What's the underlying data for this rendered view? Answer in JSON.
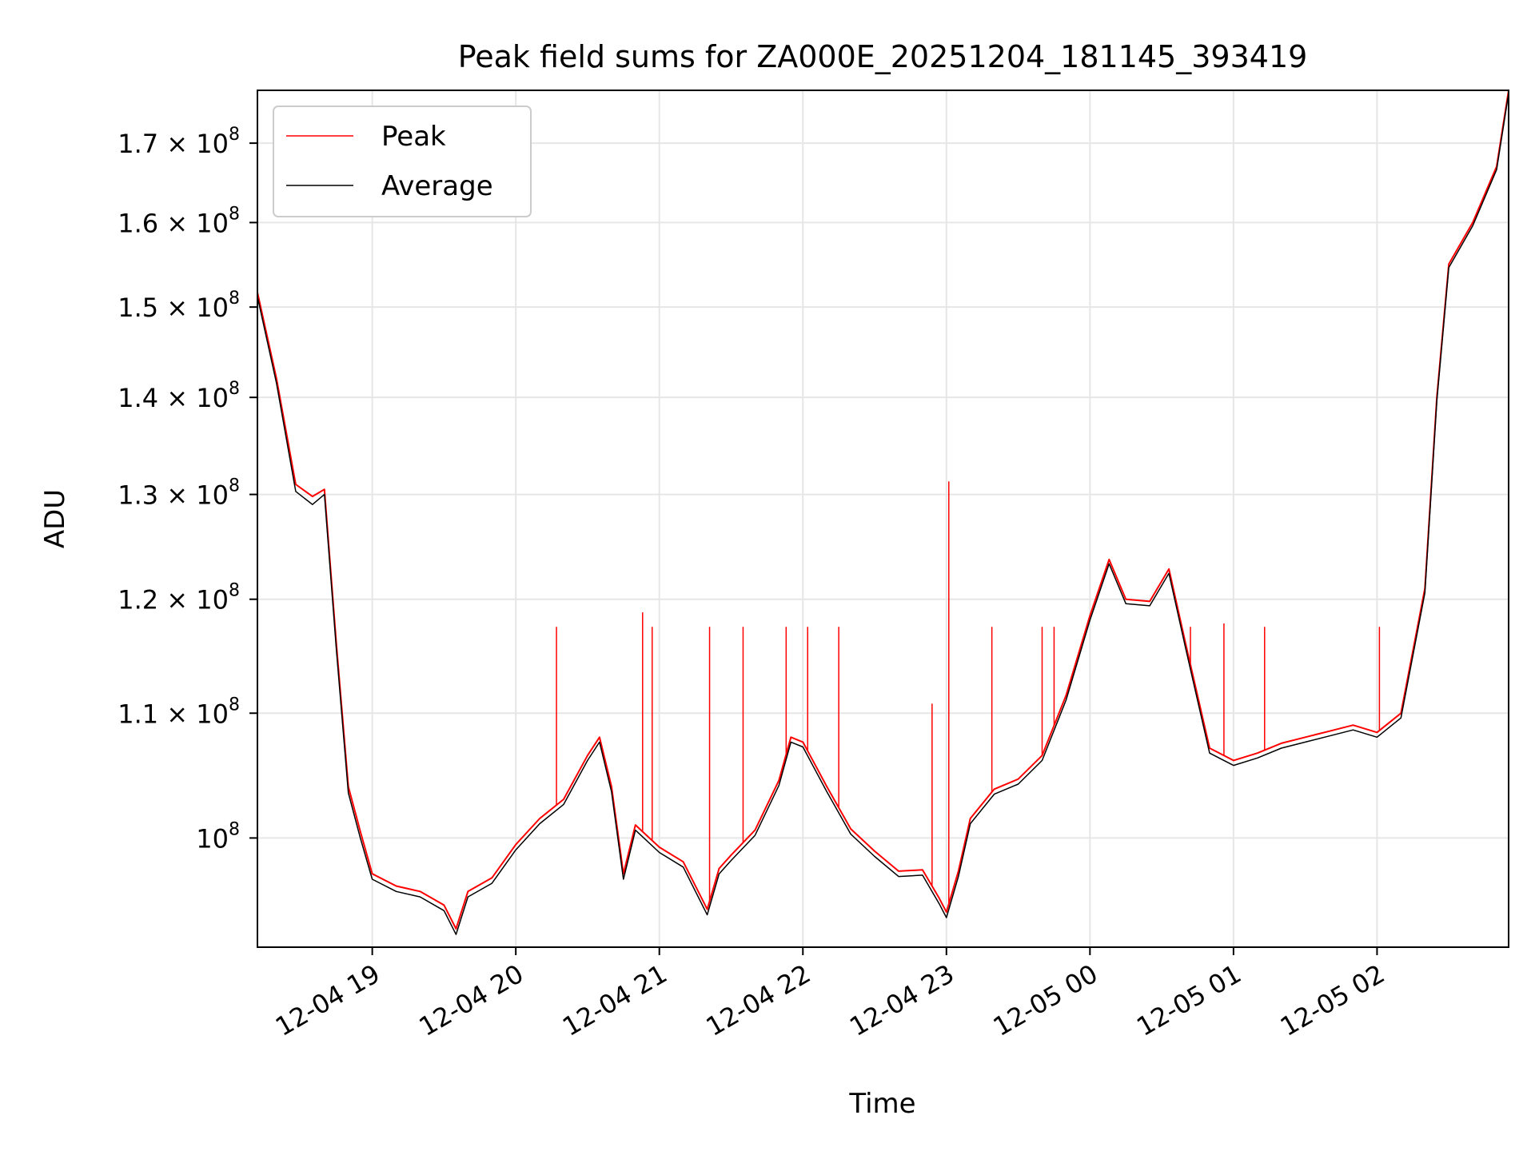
{
  "chart_data": {
    "type": "line",
    "title": "Peak field sums for ZA000E_20251204_181145_393419",
    "xlabel": "Time",
    "ylabel": "ADU",
    "y_scale": "log",
    "xlim": [
      "2025-12-04 18:12",
      "2025-12-05 02:55"
    ],
    "ylim": [
      92000000,
      177000000
    ],
    "grid": true,
    "legend_position": "top-left",
    "x_ticks": [
      {
        "value": "2025-12-04 19:00",
        "label": "12-04 19"
      },
      {
        "value": "2025-12-04 20:00",
        "label": "12-04 20"
      },
      {
        "value": "2025-12-04 21:00",
        "label": "12-04 21"
      },
      {
        "value": "2025-12-04 22:00",
        "label": "12-04 22"
      },
      {
        "value": "2025-12-04 23:00",
        "label": "12-04 23"
      },
      {
        "value": "2025-12-05 00:00",
        "label": "12-05 00"
      },
      {
        "value": "2025-12-05 01:00",
        "label": "12-05 01"
      },
      {
        "value": "2025-12-05 02:00",
        "label": "12-05 02"
      }
    ],
    "y_ticks": [
      {
        "value": 100000000,
        "mant": "",
        "exp": "8"
      },
      {
        "value": 110000000,
        "mant": "1.1",
        "exp": "8"
      },
      {
        "value": 120000000,
        "mant": "1.2",
        "exp": "8"
      },
      {
        "value": 130000000,
        "mant": "1.3",
        "exp": "8"
      },
      {
        "value": 140000000,
        "mant": "1.4",
        "exp": "8"
      },
      {
        "value": 150000000,
        "mant": "1.5",
        "exp": "8"
      },
      {
        "value": 160000000,
        "mant": "1.6",
        "exp": "8"
      },
      {
        "value": 170000000,
        "mant": "1.7",
        "exp": "8"
      }
    ],
    "series": [
      {
        "name": "Peak",
        "color": "#ff0000",
        "x": [
          "2025-12-04 18:12",
          "2025-12-04 18:20",
          "2025-12-04 18:28",
          "2025-12-04 18:35",
          "2025-12-04 18:40",
          "2025-12-04 18:45",
          "2025-12-04 18:50",
          "2025-12-04 18:55",
          "2025-12-04 19:00",
          "2025-12-04 19:10",
          "2025-12-04 19:20",
          "2025-12-04 19:30",
          "2025-12-04 19:35",
          "2025-12-04 19:40",
          "2025-12-04 19:50",
          "2025-12-04 20:00",
          "2025-12-04 20:10",
          "2025-12-04 20:20",
          "2025-12-04 20:30",
          "2025-12-04 20:35",
          "2025-12-04 20:40",
          "2025-12-04 20:45",
          "2025-12-04 20:50",
          "2025-12-04 21:00",
          "2025-12-04 21:10",
          "2025-12-04 21:20",
          "2025-12-04 21:25",
          "2025-12-04 21:30",
          "2025-12-04 21:40",
          "2025-12-04 21:50",
          "2025-12-04 21:55",
          "2025-12-04 22:00",
          "2025-12-04 22:10",
          "2025-12-04 22:20",
          "2025-12-04 22:30",
          "2025-12-04 22:40",
          "2025-12-04 22:50",
          "2025-12-04 22:57",
          "2025-12-04 23:00",
          "2025-12-04 23:05",
          "2025-12-04 23:10",
          "2025-12-04 23:20",
          "2025-12-04 23:30",
          "2025-12-04 23:40",
          "2025-12-04 23:50",
          "2025-12-05 00:00",
          "2025-12-05 00:08",
          "2025-12-05 00:15",
          "2025-12-05 00:25",
          "2025-12-05 00:33",
          "2025-12-05 00:40",
          "2025-12-05 00:50",
          "2025-12-05 01:00",
          "2025-12-05 01:10",
          "2025-12-05 01:20",
          "2025-12-05 01:30",
          "2025-12-05 01:40",
          "2025-12-05 01:50",
          "2025-12-05 02:00",
          "2025-12-05 02:10",
          "2025-12-05 02:20",
          "2025-12-05 02:25",
          "2025-12-05 02:30",
          "2025-12-05 02:40",
          "2025-12-05 02:50",
          "2025-12-05 02:55"
        ],
        "values": [
          151700000,
          142000000,
          131000000,
          129800000,
          130500000,
          116000000,
          104000000,
          100500000,
          97300000,
          96400000,
          96000000,
          95000000,
          93300000,
          96000000,
          97000000,
          99500000,
          101500000,
          103000000,
          106500000,
          108000000,
          104000000,
          97300000,
          101000000,
          99300000,
          98200000,
          94700000,
          97700000,
          98700000,
          100600000,
          104500000,
          108000000,
          107600000,
          104000000,
          100700000,
          99000000,
          97500000,
          97600000,
          95500000,
          94500000,
          97500000,
          101500000,
          103800000,
          104600000,
          106500000,
          111500000,
          118500000,
          123700000,
          120000000,
          119800000,
          122800000,
          116000000,
          107100000,
          106100000,
          106700000,
          107500000,
          108000000,
          108500000,
          109000000,
          108400000,
          110000000,
          121000000,
          140000000,
          155000000,
          160000000,
          167000000,
          177000000
        ]
      },
      {
        "name": "Average",
        "color": "#000000",
        "x": [
          "2025-12-04 18:12",
          "2025-12-04 18:20",
          "2025-12-04 18:28",
          "2025-12-04 18:35",
          "2025-12-04 18:40",
          "2025-12-04 18:45",
          "2025-12-04 18:50",
          "2025-12-04 18:55",
          "2025-12-04 19:00",
          "2025-12-04 19:10",
          "2025-12-04 19:20",
          "2025-12-04 19:30",
          "2025-12-04 19:35",
          "2025-12-04 19:40",
          "2025-12-04 19:50",
          "2025-12-04 20:00",
          "2025-12-04 20:10",
          "2025-12-04 20:20",
          "2025-12-04 20:30",
          "2025-12-04 20:35",
          "2025-12-04 20:40",
          "2025-12-04 20:45",
          "2025-12-04 20:50",
          "2025-12-04 21:00",
          "2025-12-04 21:10",
          "2025-12-04 21:20",
          "2025-12-04 21:25",
          "2025-12-04 21:30",
          "2025-12-04 21:40",
          "2025-12-04 21:50",
          "2025-12-04 21:55",
          "2025-12-04 22:00",
          "2025-12-04 22:10",
          "2025-12-04 22:20",
          "2025-12-04 22:30",
          "2025-12-04 22:40",
          "2025-12-04 22:50",
          "2025-12-04 22:57",
          "2025-12-04 23:00",
          "2025-12-04 23:05",
          "2025-12-04 23:10",
          "2025-12-04 23:20",
          "2025-12-04 23:30",
          "2025-12-04 23:40",
          "2025-12-04 23:50",
          "2025-12-05 00:00",
          "2025-12-05 00:08",
          "2025-12-05 00:15",
          "2025-12-05 00:25",
          "2025-12-05 00:33",
          "2025-12-05 00:40",
          "2025-12-05 00:50",
          "2025-12-05 01:00",
          "2025-12-05 01:10",
          "2025-12-05 01:20",
          "2025-12-05 01:30",
          "2025-12-05 01:40",
          "2025-12-05 01:50",
          "2025-12-05 02:00",
          "2025-12-05 02:10",
          "2025-12-05 02:20",
          "2025-12-05 02:25",
          "2025-12-05 02:30",
          "2025-12-05 02:40",
          "2025-12-05 02:50",
          "2025-12-05 02:55"
        ],
        "values": [
          151200000,
          141500000,
          130300000,
          129000000,
          130000000,
          115500000,
          103500000,
          100000000,
          96900000,
          96000000,
          95600000,
          94600000,
          92900000,
          95600000,
          96600000,
          99100000,
          101100000,
          102600000,
          106100000,
          107600000,
          103600000,
          96900000,
          100600000,
          98900000,
          97800000,
          94300000,
          97300000,
          98300000,
          100200000,
          104100000,
          107600000,
          107200000,
          103600000,
          100300000,
          98600000,
          97100000,
          97200000,
          95100000,
          94100000,
          97100000,
          101100000,
          103400000,
          104200000,
          106100000,
          111100000,
          118100000,
          123300000,
          119600000,
          119400000,
          122400000,
          115600000,
          106700000,
          105700000,
          106300000,
          107100000,
          107600000,
          108100000,
          108600000,
          108000000,
          109600000,
          120600000,
          139600000,
          154600000,
          159600000,
          166600000,
          176600000
        ]
      }
    ],
    "peak_spikes": [
      {
        "x": "2025-12-04 20:17",
        "value": 117500000
      },
      {
        "x": "2025-12-04 20:53",
        "value": 118800000
      },
      {
        "x": "2025-12-04 20:57",
        "value": 117500000
      },
      {
        "x": "2025-12-04 21:21",
        "value": 117500000
      },
      {
        "x": "2025-12-04 21:35",
        "value": 117500000
      },
      {
        "x": "2025-12-04 21:53",
        "value": 117500000
      },
      {
        "x": "2025-12-04 22:02",
        "value": 117500000
      },
      {
        "x": "2025-12-04 22:15",
        "value": 117500000
      },
      {
        "x": "2025-12-04 22:54",
        "value": 110800000
      },
      {
        "x": "2025-12-04 23:01",
        "value": 131300000
      },
      {
        "x": "2025-12-04 23:19",
        "value": 117500000
      },
      {
        "x": "2025-12-04 23:40",
        "value": 117500000
      },
      {
        "x": "2025-12-04 23:45",
        "value": 117500000
      },
      {
        "x": "2025-12-05 00:42",
        "value": 117500000
      },
      {
        "x": "2025-12-05 00:56",
        "value": 117800000
      },
      {
        "x": "2025-12-05 01:13",
        "value": 117500000
      },
      {
        "x": "2025-12-05 02:01",
        "value": 117500000
      }
    ]
  }
}
